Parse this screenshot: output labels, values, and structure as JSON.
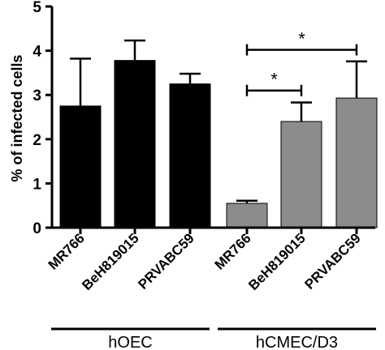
{
  "chart_data": {
    "type": "bar",
    "title": "",
    "xlabel": "",
    "ylabel": "% of infected cells",
    "ylim": [
      0,
      5
    ],
    "yticks": [
      "0",
      "1",
      "2",
      "3",
      "4",
      "5"
    ],
    "grid": false,
    "categories": [
      "MR766",
      "BeH819015",
      "PRVABC59",
      "MR766",
      "BeH819015",
      "PRVABC59"
    ],
    "values": [
      2.75,
      3.78,
      3.25,
      0.55,
      2.4,
      2.93
    ],
    "errors": [
      1.07,
      0.45,
      0.23,
      0.06,
      0.43,
      0.83
    ],
    "bar_colors": [
      "#000000",
      "#000000",
      "#000000",
      "#8c8c8c",
      "#8c8c8c",
      "#8c8c8c"
    ],
    "groups": [
      {
        "label": "hOEC",
        "start": 0,
        "end": 2
      },
      {
        "label": "hCMEC/D3",
        "start": 3,
        "end": 5
      }
    ],
    "significance": [
      {
        "from": 3,
        "to": 4,
        "label": "*",
        "y": 3.1
      },
      {
        "from": 3,
        "to": 5,
        "label": "*",
        "y": 4.02
      }
    ]
  },
  "colors": {
    "axis": "#000000",
    "error_bar": "#000000"
  }
}
